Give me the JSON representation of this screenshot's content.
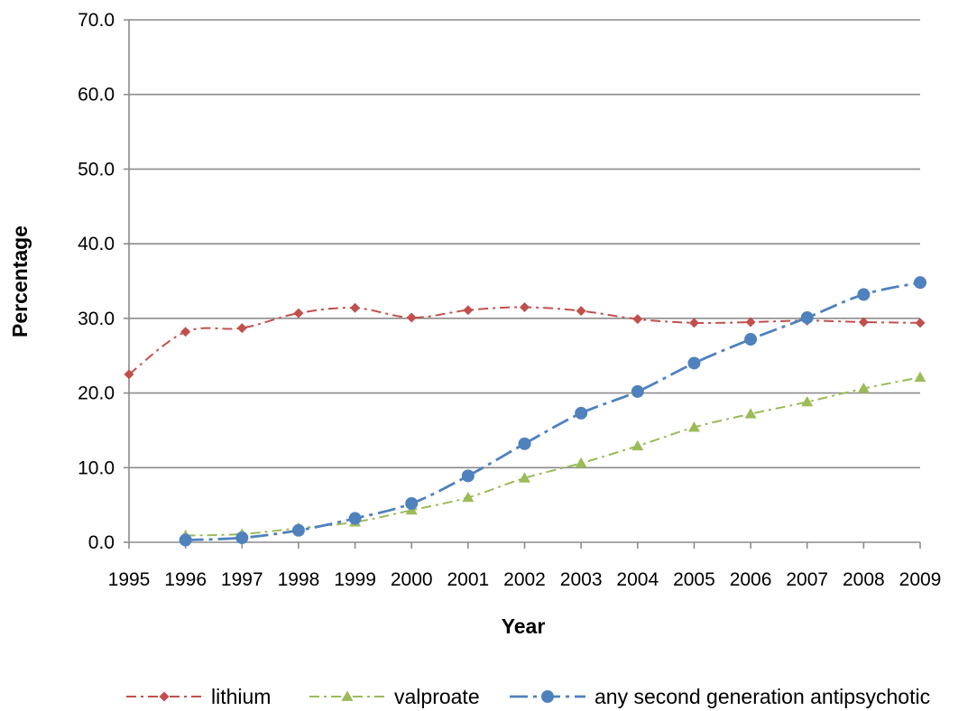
{
  "chart_data": {
    "type": "line",
    "title": "",
    "xlabel": "Year",
    "ylabel": "Percentage",
    "ylim": [
      0,
      70
    ],
    "yticks": [
      "0.0",
      "10.0",
      "20.0",
      "30.0",
      "40.0",
      "50.0",
      "60.0",
      "70.0"
    ],
    "categories": [
      "1995",
      "1996",
      "1997",
      "1998",
      "1999",
      "2000",
      "2001",
      "2002",
      "2003",
      "2004",
      "2005",
      "2006",
      "2007",
      "2008",
      "2009"
    ],
    "grid": true,
    "legend_position": "bottom",
    "series": [
      {
        "name": "lithium",
        "color": "#C0504D",
        "marker": "diamond",
        "line_style": "dash-dot",
        "values": [
          22.5,
          28.2,
          28.7,
          30.7,
          31.4,
          30.1,
          31.1,
          31.5,
          31.0,
          29.9,
          29.4,
          29.5,
          29.7,
          29.5,
          29.4
        ]
      },
      {
        "name": "valproate",
        "color": "#9BBB59",
        "marker": "triangle",
        "line_style": "dash-dot",
        "values": [
          null,
          0.9,
          1.1,
          1.9,
          2.7,
          4.3,
          6.0,
          8.6,
          10.6,
          12.9,
          15.4,
          17.2,
          18.8,
          20.6,
          22.1
        ]
      },
      {
        "name": "any second generation antipsychotic",
        "color": "#4F81BD",
        "marker": "circle",
        "line_style": "long-dash-dot",
        "values": [
          null,
          0.3,
          0.6,
          1.6,
          3.2,
          5.2,
          8.9,
          13.2,
          17.3,
          20.2,
          24.0,
          27.2,
          30.1,
          33.2,
          34.8
        ]
      }
    ]
  }
}
